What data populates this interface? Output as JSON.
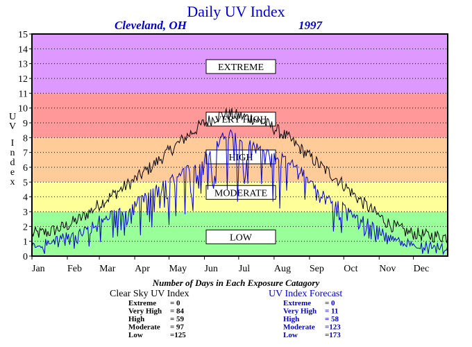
{
  "chart_data": {
    "type": "line",
    "title": "Daily UV Index",
    "location": "Cleveland, OH",
    "year": "1997",
    "ylabel": "UV Index",
    "ylim": [
      0,
      15
    ],
    "yticks": [
      0,
      1,
      2,
      3,
      4,
      5,
      6,
      7,
      8,
      9,
      10,
      11,
      12,
      13,
      14,
      15
    ],
    "xlim": [
      1,
      365
    ],
    "grid": "horizontal dotted",
    "months": [
      {
        "label": "Jan",
        "day": 1
      },
      {
        "label": "Feb",
        "day": 32
      },
      {
        "label": "Mar",
        "day": 60
      },
      {
        "label": "Apr",
        "day": 91
      },
      {
        "label": "May",
        "day": 121
      },
      {
        "label": "Jun",
        "day": 152
      },
      {
        "label": "Jul",
        "day": 182
      },
      {
        "label": "Aug",
        "day": 213
      },
      {
        "label": "Sep",
        "day": 244
      },
      {
        "label": "Oct",
        "day": 274
      },
      {
        "label": "Nov",
        "day": 305
      },
      {
        "label": "Dec",
        "day": 335
      }
    ],
    "bands": [
      {
        "label": "LOW",
        "from": 0,
        "to": 3,
        "color": "#99ff99",
        "label_y": 1.3
      },
      {
        "label": "MODERATE",
        "from": 3,
        "to": 5,
        "color": "#ffff99",
        "label_y": 4.3
      },
      {
        "label": "HIGH",
        "from": 5,
        "to": 7,
        "color": "#ffcc99",
        "label_y": 6.7
      },
      {
        "label": "VERY HIGH",
        "from": 7,
        "to": 8,
        "color": "#ffcc99",
        "label_y": 9.3
      },
      {
        "label": "VERY HIGH",
        "from": 8,
        "to": 11,
        "color": "#ff9999",
        "label_y": 9.3
      },
      {
        "label": "EXTREME",
        "from": 11,
        "to": 15,
        "color": "#dd99ff",
        "label_y": 12.8
      }
    ],
    "band_labels": [
      "EXTREME",
      "VERY HIGH",
      "HIGH",
      "MODERATE",
      "LOW"
    ],
    "series": [
      {
        "name": "Clear Sky UV Index",
        "color": "#000000",
        "x": [
          1,
          15,
          30,
          45,
          60,
          75,
          90,
          105,
          120,
          135,
          150,
          165,
          172,
          180,
          195,
          210,
          225,
          240,
          255,
          270,
          285,
          300,
          315,
          330,
          345,
          365
        ],
        "y": [
          1.5,
          1.6,
          2.0,
          2.6,
          3.5,
          4.3,
          5.1,
          6.0,
          7.0,
          8.0,
          8.9,
          9.5,
          9.6,
          9.5,
          9.3,
          8.8,
          8.0,
          7.0,
          6.0,
          5.1,
          4.0,
          3.0,
          2.1,
          1.6,
          1.4,
          1.3
        ]
      },
      {
        "name": "UV Index Forecast",
        "color": "#0000cc",
        "x": [
          1,
          15,
          30,
          45,
          60,
          75,
          90,
          105,
          120,
          135,
          150,
          165,
          172,
          180,
          195,
          210,
          225,
          240,
          255,
          270,
          285,
          300,
          315,
          330,
          345,
          365
        ],
        "y": [
          0.8,
          0.9,
          1.3,
          1.6,
          2.5,
          3.0,
          3.4,
          4.5,
          5.0,
          5.8,
          6.5,
          7.8,
          8.5,
          8.0,
          7.5,
          7.0,
          6.5,
          5.5,
          4.2,
          3.5,
          2.8,
          2.0,
          1.2,
          0.9,
          0.7,
          0.6
        ]
      }
    ]
  },
  "summary": {
    "caption": "Number of Days in Each Exposure Catagory",
    "clear_sky": {
      "heading": "Clear Sky UV Index",
      "color": "#000000",
      "rows": [
        {
          "label": "Extreme",
          "value": "=    0"
        },
        {
          "label": "Very High",
          "value": "=  84"
        },
        {
          "label": "High",
          "value": "=  59"
        },
        {
          "label": "Moderate",
          "value": "=  97"
        },
        {
          "label": "Low",
          "value": "=125"
        }
      ]
    },
    "forecast": {
      "heading": "UV Index Forecast",
      "color": "#0000cc",
      "rows": [
        {
          "label": "Extreme",
          "value": "=    0"
        },
        {
          "label": "Very High",
          "value": "=  11"
        },
        {
          "label": "High",
          "value": "=  58"
        },
        {
          "label": "Moderate",
          "value": "=123"
        },
        {
          "label": "Low",
          "value": "=173"
        }
      ]
    }
  }
}
